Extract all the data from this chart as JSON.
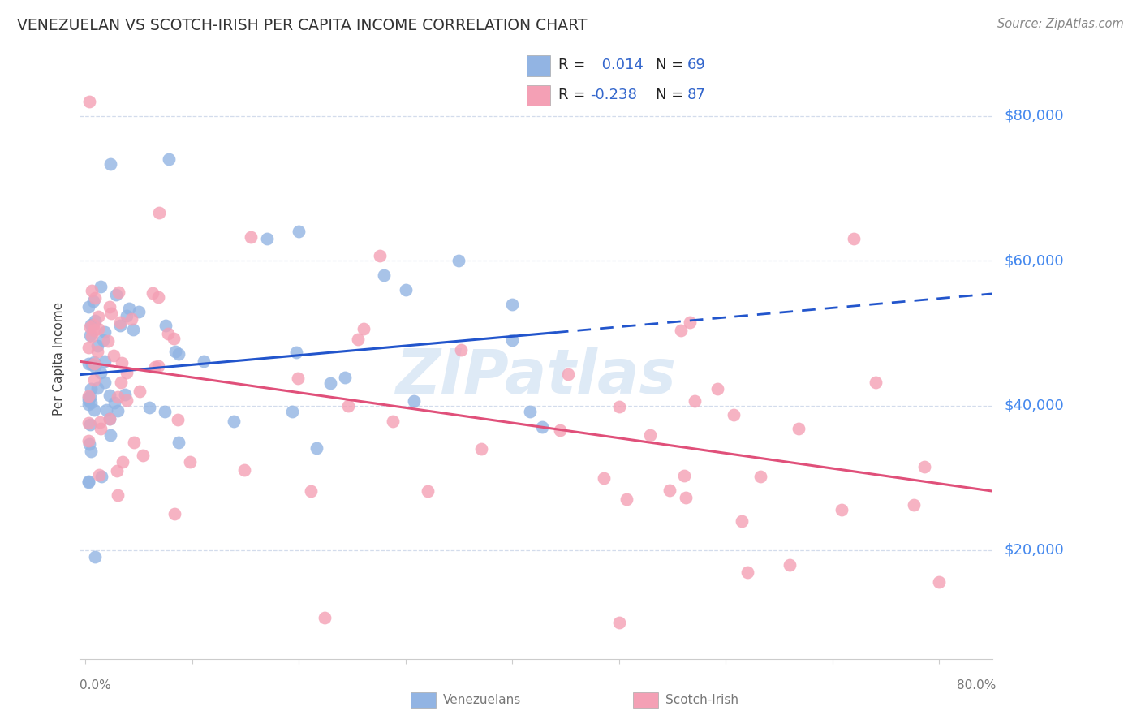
{
  "title": "VENEZUELAN VS SCOTCH-IRISH PER CAPITA INCOME CORRELATION CHART",
  "source": "Source: ZipAtlas.com",
  "ylabel": "Per Capita Income",
  "watermark": "ZIPatlas",
  "venezuelan_R": 0.014,
  "venezuelan_N": 69,
  "scotch_irish_R": -0.238,
  "scotch_irish_N": 87,
  "ytick_labels": [
    "$20,000",
    "$40,000",
    "$60,000",
    "$80,000"
  ],
  "ytick_values": [
    20000,
    40000,
    60000,
    80000
  ],
  "ymin": 5000,
  "ymax": 88000,
  "xmin": -0.005,
  "xmax": 0.85,
  "venezuelan_color": "#92b4e3",
  "scotch_irish_color": "#f4a0b5",
  "venezuelan_line_color": "#2255cc",
  "scotch_irish_line_color": "#e0507a",
  "background_color": "#ffffff",
  "grid_color": "#c8d4e8",
  "legend_text_color": "#3366cc",
  "legend_border_color": "#cccccc",
  "bottom_label_color": "#777777",
  "title_color": "#333333",
  "source_color": "#888888",
  "ylabel_color": "#444444",
  "tick_color": "#aaaaaa",
  "right_yaxis_color": "#4488ee"
}
